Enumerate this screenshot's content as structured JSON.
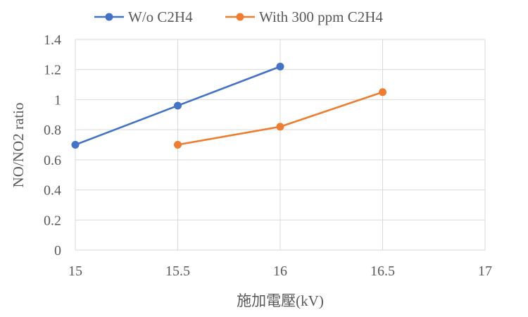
{
  "chart_data": {
    "type": "line",
    "xlabel": "施加電壓(kV)",
    "ylabel": "NO/NO2 ratio",
    "xlim": [
      15,
      17
    ],
    "ylim": [
      0,
      1.4
    ],
    "x_ticks": [
      "15",
      "15.5",
      "16",
      "16.5",
      "17"
    ],
    "y_ticks": [
      "0",
      "0.2",
      "0.4",
      "0.6",
      "0.8",
      "1",
      "1.2",
      "1.4"
    ],
    "grid": true,
    "legend_position": "top",
    "series": [
      {
        "name": "W/o C2H4",
        "color": "#4472c4",
        "points": [
          {
            "x": 15,
            "y": 0.7
          },
          {
            "x": 15.5,
            "y": 0.96
          },
          {
            "x": 16,
            "y": 1.22
          }
        ]
      },
      {
        "name": "With 300 ppm C2H4",
        "color": "#ed7d31",
        "points": [
          {
            "x": 15.5,
            "y": 0.7
          },
          {
            "x": 16,
            "y": 0.82
          },
          {
            "x": 16.5,
            "y": 1.05
          }
        ]
      }
    ]
  }
}
